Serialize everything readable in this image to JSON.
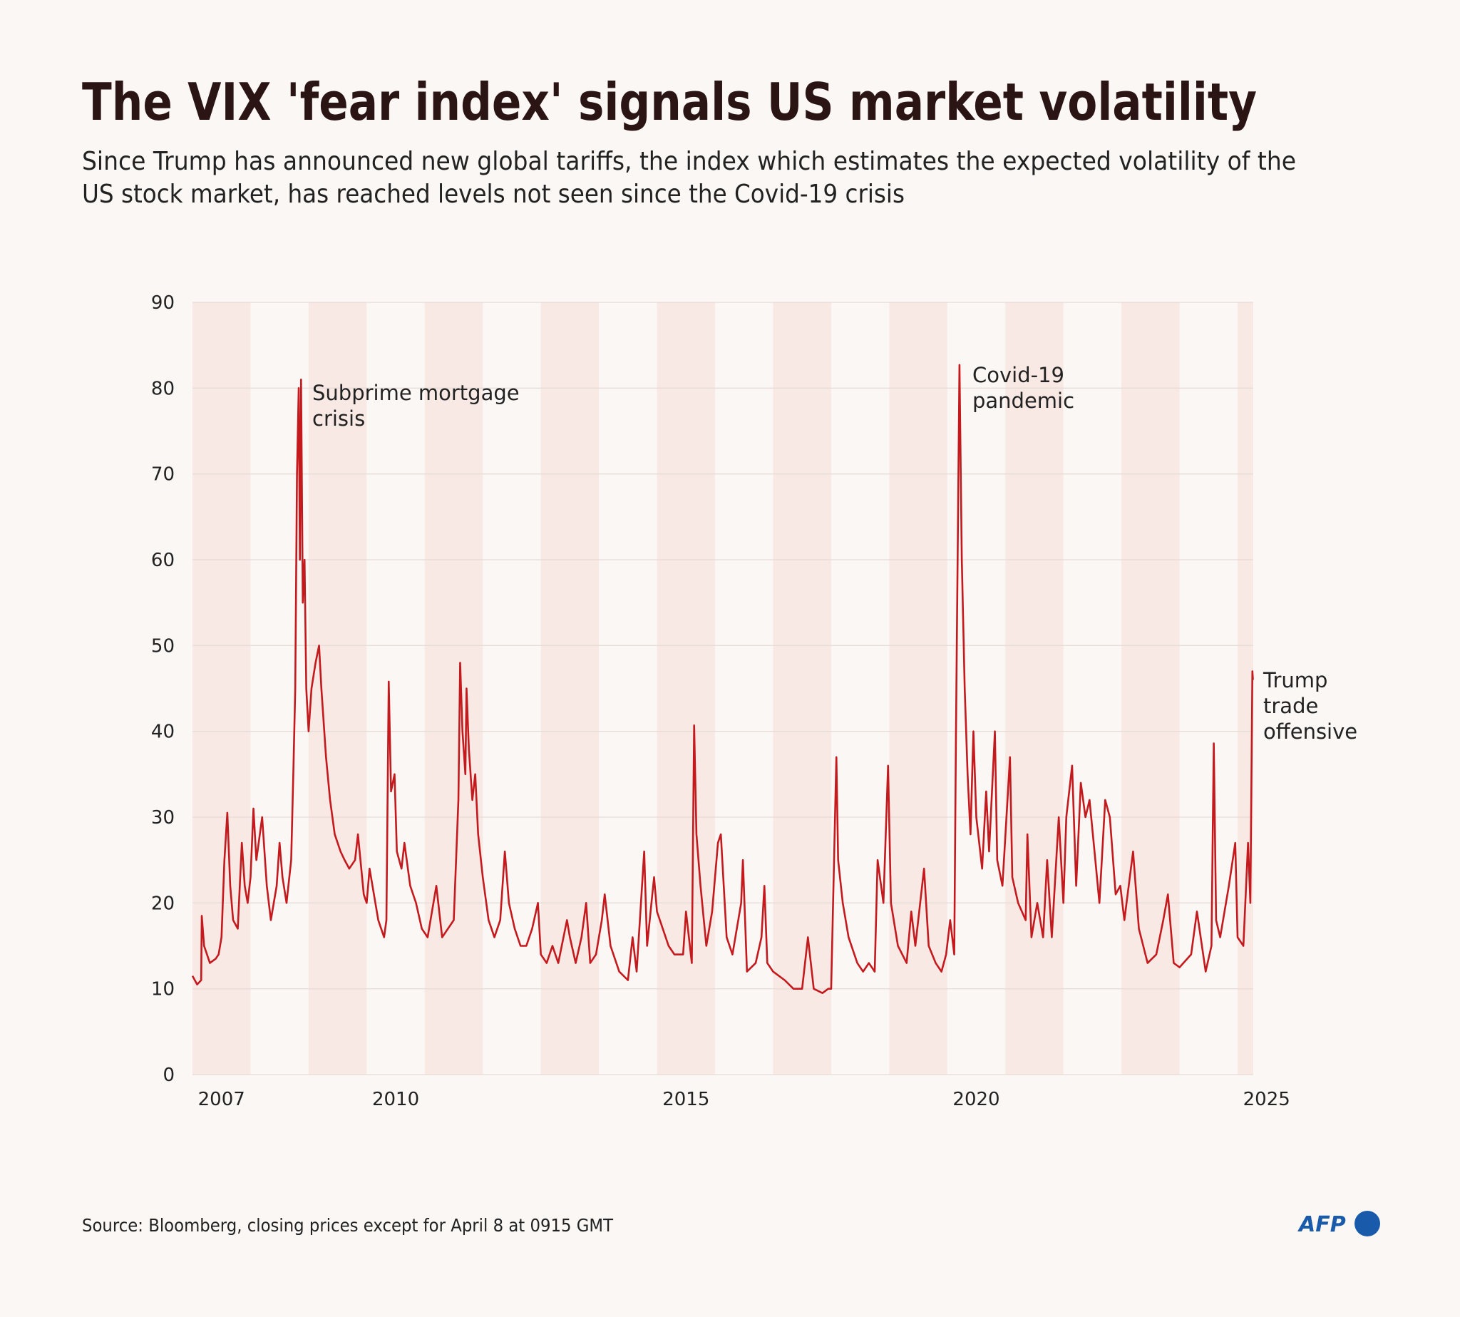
{
  "chart_data": {
    "type": "line",
    "title": "The VIX 'fear index' signals US market volatility",
    "subtitle": [
      "Since Trump has announced new global tariffs, the index which estimates the expected volatility of the",
      "US stock market, has reached levels not seen since the Covid-19 crisis"
    ],
    "source": "Source: Bloomberg, closing prices except for April 8 at 0915 GMT",
    "logo": "AFP",
    "color": "#c41a1e",
    "grid": true,
    "xlim": [
      2007,
      2025.27
    ],
    "ylim": [
      0,
      90
    ],
    "yticks": [
      0,
      10,
      20,
      30,
      40,
      50,
      60,
      70,
      80,
      90
    ],
    "xticks": [
      {
        "value": 2007.5,
        "label": "2007"
      },
      {
        "value": 2010.5,
        "label": "2010"
      },
      {
        "value": 2015.5,
        "label": "2015"
      },
      {
        "value": 2020.5,
        "label": "2020"
      },
      {
        "value": 2025.5,
        "label": "2025"
      }
    ],
    "annotations": [
      {
        "text": [
          "Subprime mortgage",
          "crisis"
        ]
      },
      {
        "text": [
          "Covid-19",
          "pandemic"
        ]
      },
      {
        "text": [
          "Trump",
          "trade",
          "offensive"
        ]
      }
    ],
    "x": [
      2007.0,
      2007.08,
      2007.15,
      2007.16,
      2007.2,
      2007.3,
      2007.4,
      2007.45,
      2007.5,
      2007.55,
      2007.6,
      2007.65,
      2007.7,
      2007.78,
      2007.85,
      2007.9,
      2007.95,
      2008.0,
      2008.05,
      2008.1,
      2008.2,
      2008.28,
      2008.35,
      2008.45,
      2008.5,
      2008.55,
      2008.62,
      2008.7,
      2008.74,
      2008.77,
      2008.8,
      2008.83,
      2008.85,
      2008.87,
      2008.9,
      2008.93,
      2008.96,
      2009.0,
      2009.05,
      2009.12,
      2009.18,
      2009.22,
      2009.3,
      2009.37,
      2009.45,
      2009.55,
      2009.62,
      2009.7,
      2009.8,
      2009.85,
      2009.95,
      2010.0,
      2010.05,
      2010.1,
      2010.2,
      2010.3,
      2010.34,
      2010.38,
      2010.42,
      2010.48,
      2010.52,
      2010.6,
      2010.65,
      2010.75,
      2010.85,
      2010.95,
      2011.05,
      2011.15,
      2011.2,
      2011.3,
      2011.4,
      2011.5,
      2011.58,
      2011.61,
      2011.65,
      2011.7,
      2011.72,
      2011.76,
      2011.82,
      2011.87,
      2011.92,
      2012.0,
      2012.1,
      2012.2,
      2012.3,
      2012.38,
      2012.45,
      2012.55,
      2012.65,
      2012.75,
      2012.85,
      2012.95,
      2013.0,
      2013.1,
      2013.2,
      2013.3,
      2013.45,
      2013.5,
      2013.6,
      2013.7,
      2013.78,
      2013.85,
      2013.95,
      2014.05,
      2014.1,
      2014.2,
      2014.35,
      2014.5,
      2014.58,
      2014.65,
      2014.78,
      2014.83,
      2014.95,
      2015.0,
      2015.1,
      2015.2,
      2015.3,
      2015.45,
      2015.5,
      2015.6,
      2015.64,
      2015.68,
      2015.75,
      2015.85,
      2015.95,
      2016.05,
      2016.1,
      2016.2,
      2016.3,
      2016.45,
      2016.48,
      2016.55,
      2016.7,
      2016.8,
      2016.85,
      2016.9,
      2017.0,
      2017.2,
      2017.35,
      2017.5,
      2017.6,
      2017.7,
      2017.85,
      2017.95,
      2018.0,
      2018.09,
      2018.12,
      2018.2,
      2018.3,
      2018.45,
      2018.55,
      2018.65,
      2018.75,
      2018.8,
      2018.9,
      2018.98,
      2019.03,
      2019.15,
      2019.3,
      2019.38,
      2019.45,
      2019.6,
      2019.68,
      2019.8,
      2019.9,
      2019.98,
      2020.05,
      2020.12,
      2020.15,
      2020.21,
      2020.25,
      2020.3,
      2020.35,
      2020.4,
      2020.45,
      2020.5,
      2020.6,
      2020.67,
      2020.72,
      2020.82,
      2020.86,
      2020.95,
      2021.08,
      2021.12,
      2021.22,
      2021.35,
      2021.38,
      2021.45,
      2021.55,
      2021.65,
      2021.72,
      2021.8,
      2021.92,
      2022.0,
      2022.05,
      2022.15,
      2022.22,
      2022.3,
      2022.38,
      2022.45,
      2022.55,
      2022.62,
      2022.72,
      2022.8,
      2022.9,
      2022.98,
      2023.05,
      2023.2,
      2023.3,
      2023.45,
      2023.6,
      2023.72,
      2023.8,
      2023.9,
      2024.0,
      2024.2,
      2024.3,
      2024.45,
      2024.55,
      2024.59,
      2024.63,
      2024.7,
      2024.85,
      2024.96,
      2025.0,
      2025.1,
      2025.18,
      2025.22,
      2025.255,
      2025.265
    ],
    "values": [
      11.5,
      10.5,
      11,
      18.5,
      15,
      13,
      13.5,
      14,
      16,
      25,
      30.5,
      22,
      18,
      17,
      27,
      22,
      20,
      23,
      31,
      25,
      30,
      22,
      18,
      22,
      27,
      23,
      20,
      25,
      36,
      45,
      70,
      80,
      60,
      81,
      55,
      60,
      45,
      40,
      45,
      48,
      50,
      45,
      37,
      32,
      28,
      26,
      25,
      24,
      25,
      28,
      21,
      20,
      24,
      22,
      18,
      16,
      18,
      45.8,
      33,
      35,
      26,
      24,
      27,
      22,
      20,
      17,
      16,
      20,
      22,
      16,
      17,
      18,
      32,
      48,
      40,
      35,
      45,
      38,
      32,
      35,
      28,
      23,
      18,
      16,
      18,
      26,
      20,
      17,
      15,
      15,
      17,
      20,
      14,
      13,
      15,
      13,
      18,
      16,
      13,
      16,
      20,
      13,
      14,
      18,
      21,
      15,
      12,
      11,
      16,
      12,
      26,
      15,
      23,
      19,
      17,
      15,
      14,
      14,
      19,
      13,
      40.7,
      28,
      22,
      15,
      19,
      27,
      28,
      16,
      14,
      20,
      25,
      12,
      13,
      16,
      22,
      13,
      12,
      11,
      10,
      10,
      16,
      10,
      9.5,
      10,
      10,
      37,
      25,
      20,
      16,
      13,
      12,
      13,
      12,
      25,
      20,
      36,
      20,
      15,
      13,
      19,
      15,
      24,
      15,
      13,
      12,
      14,
      18,
      14,
      40,
      82.7,
      60,
      45,
      35,
      28,
      40,
      30,
      24,
      33,
      26,
      40,
      25,
      22,
      37,
      23,
      20,
      18,
      28,
      16,
      20,
      16,
      25,
      16,
      30,
      20,
      30,
      36,
      22,
      34,
      30,
      32,
      25,
      20,
      32,
      30,
      21,
      22,
      18,
      26,
      17,
      13,
      14,
      18,
      21,
      13,
      12.5,
      14,
      19,
      12,
      15,
      38.6,
      18,
      16,
      22,
      27,
      16,
      15,
      27,
      20,
      47,
      46
    ]
  }
}
